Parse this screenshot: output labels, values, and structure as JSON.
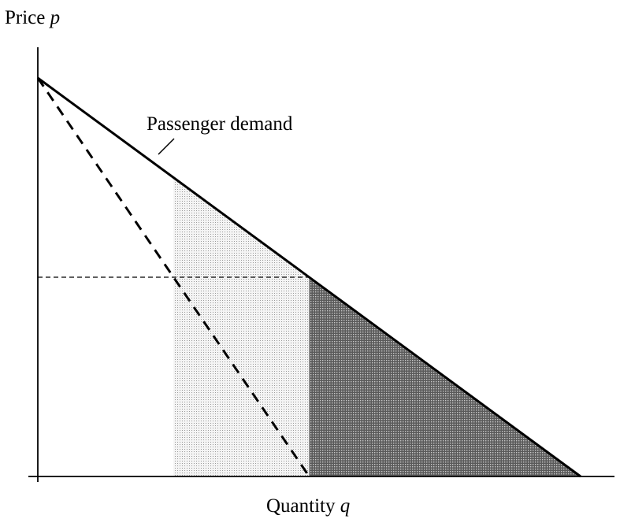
{
  "figure": {
    "y_axis_label": "Price",
    "y_axis_symbol": "p",
    "x_axis_label": "Quantity",
    "x_axis_symbol": "q",
    "annotation": "Passenger demand"
  },
  "colors": {
    "line": "#000000",
    "light_region": "#d9d9d9",
    "dark_region": "#707070",
    "background": "#ffffff"
  },
  "chart_data": {
    "type": "line",
    "series": [
      {
        "name": "Passenger demand",
        "style": "solid",
        "x": [
          0,
          1
        ],
        "y": [
          1,
          0
        ]
      },
      {
        "style": "dashed",
        "x": [
          0,
          0.5
        ],
        "y": [
          1,
          0
        ]
      }
    ],
    "reference_lines": [
      {
        "orientation": "horizontal",
        "style": "dashed",
        "y": 0.5,
        "x_range": [
          0,
          0.5
        ]
      }
    ],
    "shaded_regions": [
      {
        "fill": "light_dotted",
        "x_range": [
          0.25,
          0.5
        ],
        "y_top": "demand",
        "y_bottom": 0
      },
      {
        "fill": "dark_dotted",
        "x_range": [
          0.5,
          1
        ],
        "y_top": "demand",
        "y_bottom": 0
      }
    ],
    "xlim": [
      0,
      1
    ],
    "ylim": [
      0,
      1
    ],
    "grid": false,
    "ticks": false
  }
}
